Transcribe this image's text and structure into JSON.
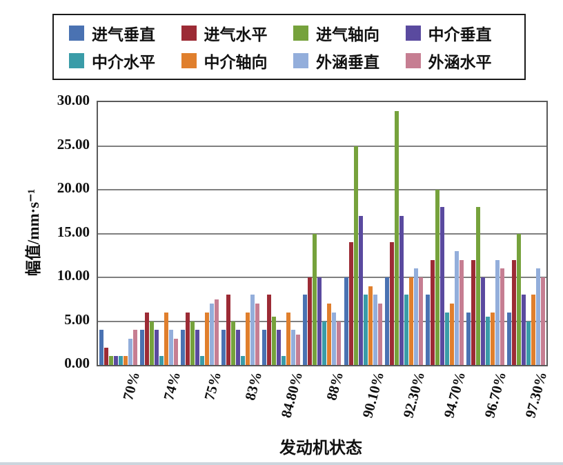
{
  "figure": {
    "background": "#ffffff"
  },
  "axes": {
    "x_title": "发动机状态",
    "y_title": "幅值/mm·s⁻¹"
  },
  "chart_data": {
    "type": "bar",
    "title": "",
    "xlabel": "发动机状态",
    "ylabel": "幅值/mm·s⁻¹",
    "ylim": [
      0,
      30
    ],
    "ytick_step": 5,
    "ytick_labels": [
      "0.00",
      "5.00",
      "10.00",
      "15.00",
      "20.00",
      "25.00",
      "30.00"
    ],
    "grid": true,
    "legend_position": "top",
    "categories": [
      "70%",
      "74%",
      "75%",
      "83%",
      "84.80%",
      "88%",
      "90.10%",
      "92.30%",
      "94.70%",
      "96.70%",
      "97.30%"
    ],
    "series": [
      {
        "name": "进气垂直",
        "color": "#4a72b2",
        "values": [
          4,
          4,
          4,
          4,
          4,
          8,
          10,
          10,
          8,
          6,
          6
        ]
      },
      {
        "name": "进气水平",
        "color": "#9c2b35",
        "values": [
          2,
          6,
          6,
          8,
          8,
          10,
          14,
          14,
          12,
          12,
          12
        ]
      },
      {
        "name": "进气轴向",
        "color": "#76a23c",
        "values": [
          1,
          5,
          5,
          5,
          5.5,
          15,
          25,
          29,
          20,
          18,
          15
        ]
      },
      {
        "name": "中介垂直",
        "color": "#5a4a9f",
        "values": [
          1,
          4,
          4,
          4,
          4,
          10,
          17,
          17,
          18,
          10,
          8
        ]
      },
      {
        "name": "中介水平",
        "color": "#3a9ca8",
        "values": [
          1,
          1,
          1,
          1,
          1,
          5,
          8,
          8,
          6,
          5.5,
          5
        ]
      },
      {
        "name": "中介轴向",
        "color": "#e07f2d",
        "values": [
          1,
          6,
          6,
          6,
          6,
          7,
          9,
          10,
          7,
          6,
          8
        ]
      },
      {
        "name": "外涵垂直",
        "color": "#93aedb",
        "values": [
          3,
          4,
          7,
          8,
          4,
          6,
          8,
          11,
          13,
          12,
          11
        ]
      },
      {
        "name": "外涵水平",
        "color": "#c67e92",
        "values": [
          4,
          3,
          7.5,
          7,
          3.5,
          5,
          7,
          10,
          12,
          11,
          10
        ]
      }
    ]
  }
}
